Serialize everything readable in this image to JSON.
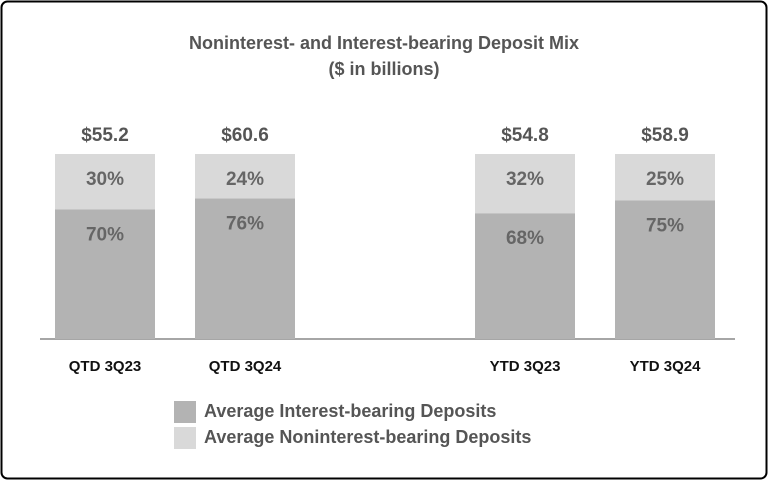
{
  "chart_data": {
    "type": "stacked_bar",
    "title": "Noninterest- and Interest-bearing Deposit Mix",
    "subtitle": "($ in billions)",
    "categories": [
      "QTD 3Q23",
      "QTD 3Q24",
      null,
      "YTD 3Q23",
      "YTD 3Q24"
    ],
    "ylim": [
      0,
      100
    ],
    "series": [
      {
        "name": "Average Interest-bearing Deposits",
        "color": "#b3b3b3",
        "values": [
          70,
          76,
          null,
          68,
          75
        ],
        "value_labels": [
          "70%",
          "76%",
          null,
          "68%",
          "75%"
        ]
      },
      {
        "name": "Average Noninterest-bearing Deposits",
        "color": "#d9d9d9",
        "values": [
          30,
          24,
          null,
          32,
          25
        ],
        "value_labels": [
          "30%",
          "24%",
          null,
          "32%",
          "25%"
        ]
      }
    ],
    "totals": {
      "values": [
        55.2,
        60.6,
        null,
        54.8,
        58.9
      ],
      "value_labels": [
        "$55.2",
        "$60.6",
        null,
        "$54.8",
        "$58.9"
      ]
    }
  }
}
